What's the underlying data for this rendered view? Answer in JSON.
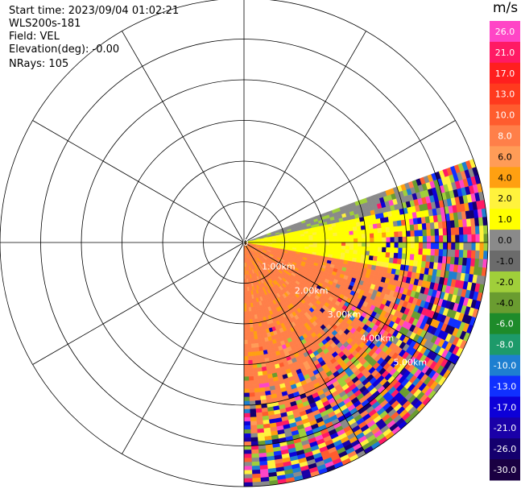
{
  "header": {
    "start_time": "Start time: 2023/09/04 01:02:21",
    "instrument": "WLS200s-181",
    "field": "Field: VEL",
    "elevation": "Elevation(deg): -0.00",
    "nrays": "NRays: 105"
  },
  "chart_data": {
    "type": "ppi-polar-scan",
    "field": "VEL",
    "units": "m/s",
    "range_rings_km": [
      0,
      1,
      2,
      3,
      4,
      5,
      6
    ],
    "range_ring_labels": [
      "0",
      "1.00km",
      "2.00km",
      "3.00km",
      "4.00km",
      "5.00km"
    ],
    "radial_lines_every_deg": 30,
    "sector_start_bearing_deg": 70,
    "sector_end_bearing_deg": 180,
    "sector_max_range_km": 6,
    "colorbar_ticks": [
      "26.0",
      "21.0",
      "17.0",
      "13.0",
      "10.0",
      "8.0",
      "6.0",
      "4.0",
      "2.0",
      "1.0",
      "0.0",
      "-1.0",
      "-2.0",
      "-4.0",
      "-6.0",
      "-8.0",
      "-10.0",
      "-13.0",
      "-17.0",
      "-21.0",
      "-26.0",
      "-30.0"
    ],
    "colorbar_colors": [
      "#ff45c6",
      "#ff1a64",
      "#ff1f1f",
      "#ff3a1e",
      "#ff5c2e",
      "#ff7f49",
      "#ff9c57",
      "#ffa011",
      "#fff23d",
      "#ffff00",
      "#8a8a8a",
      "#6b6b6b",
      "#a0cf3a",
      "#6a9c30",
      "#1e8b2a",
      "#1d9a6a",
      "#1e7fd0",
      "#1030ff",
      "#0d00d8",
      "#1a00a8",
      "#14006e",
      "#1a0042"
    ]
  }
}
